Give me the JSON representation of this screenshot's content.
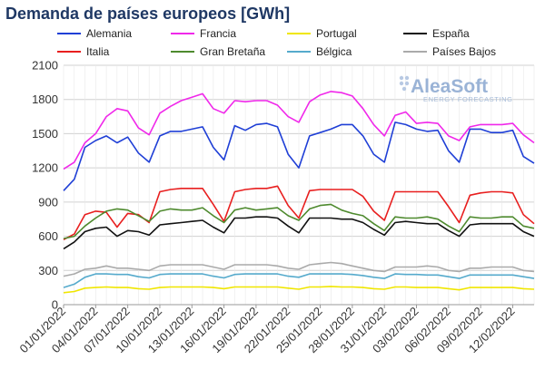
{
  "chart_data": {
    "type": "line",
    "title": "Demanda de países europeos [GWh]",
    "ylim": [
      0,
      2100
    ],
    "yticks": [
      0,
      300,
      600,
      900,
      1200,
      1500,
      1800,
      2100
    ],
    "grid": true,
    "legend_position": "top",
    "watermark": {
      "brand": "AleaSoft",
      "tagline": "ENERGY FORECASTING"
    },
    "x_dates": [
      "01/01/2022",
      "02/01/2022",
      "03/01/2022",
      "04/01/2022",
      "05/01/2022",
      "06/01/2022",
      "07/01/2022",
      "08/01/2022",
      "09/01/2022",
      "10/01/2022",
      "11/01/2022",
      "12/01/2022",
      "13/01/2022",
      "14/01/2022",
      "15/01/2022",
      "16/01/2022",
      "17/01/2022",
      "18/01/2022",
      "19/01/2022",
      "20/01/2022",
      "21/01/2022",
      "22/01/2022",
      "23/01/2022",
      "24/01/2022",
      "25/01/2022",
      "26/01/2022",
      "27/01/2022",
      "28/01/2022",
      "29/01/2022",
      "30/01/2022",
      "31/01/2022",
      "01/02/2022",
      "02/02/2022",
      "03/02/2022",
      "04/02/2022",
      "05/02/2022",
      "06/02/2022",
      "07/02/2022",
      "08/02/2022",
      "09/02/2022",
      "10/02/2022",
      "11/02/2022",
      "12/02/2022",
      "13/02/2022",
      "14/02/2022"
    ],
    "x_tick_labels": [
      "01/01/2022",
      "04/01/2022",
      "07/01/2022",
      "10/01/2022",
      "13/01/2022",
      "16/01/2022",
      "19/01/2022",
      "22/01/2022",
      "25/01/2022",
      "28/01/2022",
      "31/01/2022",
      "03/02/2022",
      "06/02/2022",
      "09/02/2022",
      "12/02/2022"
    ],
    "series": [
      {
        "name": "Alemania",
        "color": "#1f3fd6",
        "values": [
          1000,
          1100,
          1380,
          1440,
          1480,
          1420,
          1470,
          1330,
          1250,
          1480,
          1520,
          1520,
          1540,
          1560,
          1380,
          1270,
          1570,
          1530,
          1580,
          1590,
          1560,
          1320,
          1200,
          1480,
          1510,
          1540,
          1580,
          1580,
          1480,
          1320,
          1250,
          1600,
          1580,
          1540,
          1520,
          1530,
          1350,
          1250,
          1540,
          1540,
          1510,
          1510,
          1530,
          1300,
          1240
        ]
      },
      {
        "name": "Francia",
        "color": "#f028ea",
        "values": [
          1190,
          1250,
          1420,
          1500,
          1650,
          1720,
          1700,
          1550,
          1490,
          1680,
          1740,
          1790,
          1820,
          1850,
          1720,
          1680,
          1790,
          1780,
          1790,
          1790,
          1750,
          1650,
          1600,
          1780,
          1840,
          1870,
          1860,
          1830,
          1720,
          1580,
          1480,
          1660,
          1690,
          1590,
          1600,
          1590,
          1480,
          1440,
          1560,
          1580,
          1580,
          1580,
          1590,
          1490,
          1420
        ]
      },
      {
        "name": "Portugal",
        "color": "#f0e600",
        "values": [
          105,
          115,
          145,
          150,
          155,
          150,
          150,
          140,
          135,
          150,
          155,
          155,
          155,
          155,
          150,
          140,
          155,
          155,
          155,
          155,
          155,
          145,
          135,
          155,
          155,
          160,
          155,
          155,
          150,
          140,
          135,
          155,
          155,
          150,
          150,
          150,
          140,
          130,
          150,
          150,
          150,
          150,
          150,
          140,
          135
        ]
      },
      {
        "name": "España",
        "color": "#111111",
        "values": [
          490,
          550,
          640,
          670,
          680,
          600,
          650,
          640,
          610,
          700,
          710,
          720,
          730,
          740,
          680,
          630,
          760,
          760,
          770,
          770,
          760,
          690,
          630,
          760,
          760,
          760,
          750,
          750,
          720,
          660,
          610,
          720,
          730,
          720,
          710,
          710,
          650,
          600,
          700,
          710,
          710,
          710,
          710,
          640,
          600
        ]
      },
      {
        "name": "Italia",
        "color": "#e81f1f",
        "values": [
          570,
          620,
          790,
          820,
          810,
          680,
          800,
          790,
          720,
          990,
          1010,
          1020,
          1020,
          1020,
          880,
          730,
          990,
          1010,
          1020,
          1020,
          1040,
          870,
          760,
          1000,
          1010,
          1010,
          1010,
          1010,
          950,
          820,
          740,
          990,
          990,
          990,
          990,
          990,
          860,
          720,
          960,
          980,
          990,
          990,
          980,
          790,
          710
        ]
      },
      {
        "name": "Gran Bretaña",
        "color": "#4e8a2e",
        "values": [
          580,
          600,
          690,
          760,
          820,
          840,
          830,
          780,
          730,
          820,
          840,
          830,
          830,
          850,
          780,
          720,
          830,
          850,
          830,
          840,
          850,
          780,
          740,
          840,
          870,
          880,
          830,
          800,
          780,
          710,
          650,
          770,
          760,
          760,
          770,
          750,
          690,
          640,
          770,
          760,
          760,
          770,
          770,
          690,
          670
        ]
      },
      {
        "name": "Bélgica",
        "color": "#55aacc",
        "values": [
          150,
          180,
          240,
          270,
          270,
          265,
          265,
          245,
          235,
          265,
          270,
          270,
          270,
          270,
          250,
          235,
          265,
          270,
          270,
          270,
          270,
          250,
          240,
          270,
          270,
          270,
          270,
          265,
          255,
          240,
          230,
          270,
          265,
          265,
          260,
          260,
          245,
          230,
          260,
          260,
          260,
          260,
          260,
          245,
          230
        ]
      },
      {
        "name": "Países Bajos",
        "color": "#aaaaaa",
        "values": [
          250,
          270,
          310,
          320,
          340,
          320,
          320,
          310,
          300,
          340,
          350,
          350,
          350,
          350,
          330,
          310,
          350,
          350,
          350,
          350,
          340,
          320,
          310,
          350,
          360,
          370,
          360,
          340,
          320,
          300,
          290,
          330,
          330,
          330,
          340,
          330,
          300,
          290,
          320,
          320,
          330,
          330,
          330,
          300,
          290
        ]
      }
    ]
  }
}
